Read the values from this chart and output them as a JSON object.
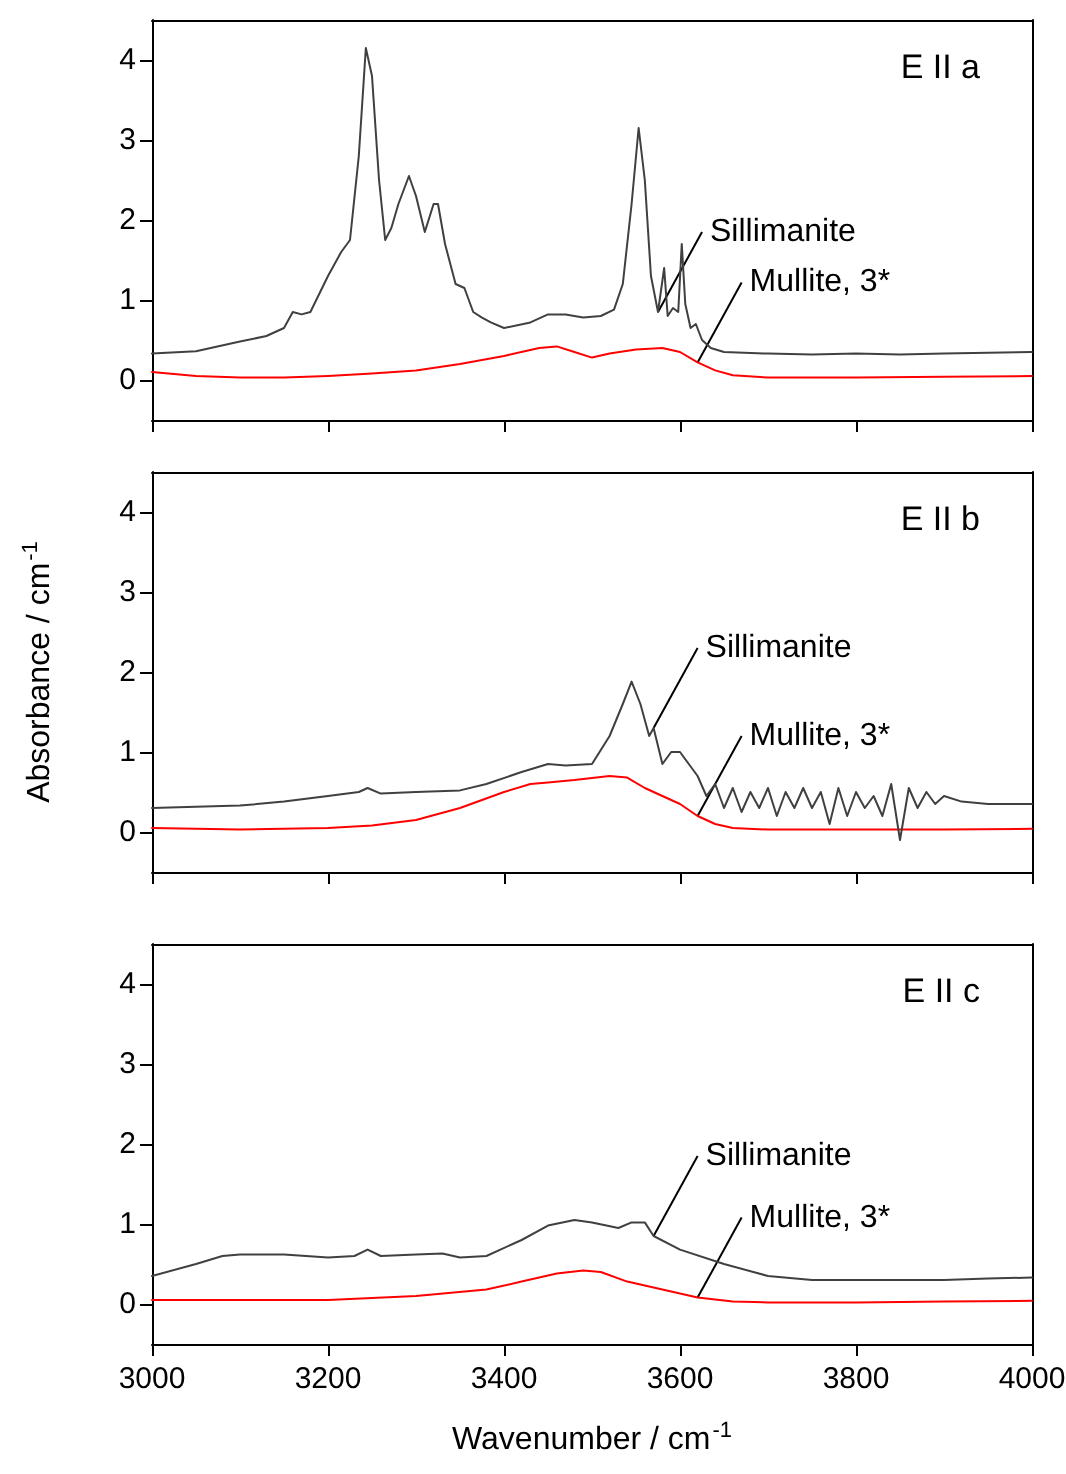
{
  "chart_data": [
    {
      "type": "line",
      "annotations": [
        "E II a"
      ],
      "xlim": [
        3000,
        4000
      ],
      "xticks": [
        3000,
        3200,
        3400,
        3600,
        3800,
        4000
      ],
      "ylim": [
        -0.5,
        4.5
      ],
      "yticks": [
        0,
        1,
        2,
        3,
        4
      ],
      "tick_labels": "y",
      "grid": false,
      "legend": false,
      "marker": "none",
      "line_style": "solid",
      "series": [
        {
          "name": "Sillimanite",
          "color": "#404040",
          "x": [
            3000,
            3050,
            3100,
            3130,
            3150,
            3160,
            3170,
            3180,
            3200,
            3215,
            3225,
            3235,
            3243,
            3250,
            3258,
            3265,
            3272,
            3280,
            3292,
            3300,
            3310,
            3320,
            3325,
            3333,
            3345,
            3355,
            3365,
            3375,
            3385,
            3400,
            3430,
            3450,
            3470,
            3490,
            3510,
            3525,
            3535,
            3545,
            3553,
            3560,
            3567,
            3575,
            3582,
            3586,
            3592,
            3598,
            3602,
            3606,
            3612,
            3618,
            3625,
            3635,
            3650,
            3700,
            3750,
            3800,
            3850,
            3900,
            3950,
            4000
          ],
          "values": [
            0.33,
            0.36,
            0.48,
            0.55,
            0.65,
            0.85,
            0.82,
            0.85,
            1.3,
            1.6,
            1.75,
            2.8,
            4.15,
            3.8,
            2.5,
            1.75,
            1.9,
            2.2,
            2.55,
            2.3,
            1.85,
            2.2,
            2.2,
            1.7,
            1.2,
            1.15,
            0.85,
            0.78,
            0.72,
            0.65,
            0.72,
            0.82,
            0.82,
            0.78,
            0.8,
            0.88,
            1.2,
            2.2,
            3.15,
            2.5,
            1.3,
            0.85,
            1.4,
            0.8,
            0.9,
            0.85,
            1.7,
            0.95,
            0.65,
            0.7,
            0.5,
            0.4,
            0.35,
            0.33,
            0.32,
            0.33,
            0.32,
            0.33,
            0.34,
            0.35
          ]
        },
        {
          "name": "Mullite, 3*",
          "color": "#ff0000",
          "x": [
            3000,
            3050,
            3100,
            3150,
            3200,
            3250,
            3300,
            3350,
            3400,
            3440,
            3460,
            3480,
            3500,
            3520,
            3550,
            3580,
            3600,
            3620,
            3640,
            3660,
            3700,
            3800,
            3900,
            4000
          ],
          "values": [
            0.1,
            0.05,
            0.03,
            0.03,
            0.05,
            0.08,
            0.12,
            0.2,
            0.3,
            0.4,
            0.42,
            0.35,
            0.28,
            0.33,
            0.38,
            0.4,
            0.35,
            0.22,
            0.12,
            0.06,
            0.03,
            0.03,
            0.04,
            0.05
          ]
        }
      ]
    },
    {
      "type": "line",
      "ylabel": "Absorbance / cm$^{-1}$",
      "annotations": [
        "E II b"
      ],
      "xlim": [
        3000,
        4000
      ],
      "xticks": [
        3000,
        3200,
        3400,
        3600,
        3800,
        4000
      ],
      "ylim": [
        -0.5,
        4.5
      ],
      "yticks": [
        0,
        1,
        2,
        3,
        4
      ],
      "tick_labels": "y",
      "grid": false,
      "legend": false,
      "marker": "none",
      "line_style": "solid",
      "series": [
        {
          "name": "Sillimanite",
          "color": "#404040",
          "x": [
            3000,
            3100,
            3150,
            3200,
            3235,
            3245,
            3260,
            3300,
            3350,
            3380,
            3420,
            3450,
            3470,
            3500,
            3520,
            3535,
            3545,
            3555,
            3565,
            3570,
            3580,
            3590,
            3600,
            3610,
            3620,
            3630,
            3640,
            3650,
            3660,
            3670,
            3680,
            3690,
            3700,
            3710,
            3720,
            3730,
            3740,
            3750,
            3760,
            3770,
            3780,
            3790,
            3800,
            3810,
            3820,
            3830,
            3840,
            3850,
            3860,
            3870,
            3880,
            3890,
            3900,
            3920,
            3950,
            4000
          ],
          "values": [
            0.3,
            0.33,
            0.38,
            0.45,
            0.5,
            0.55,
            0.48,
            0.5,
            0.52,
            0.6,
            0.75,
            0.85,
            0.83,
            0.85,
            1.2,
            1.6,
            1.88,
            1.6,
            1.2,
            1.3,
            0.85,
            1.0,
            1.0,
            0.85,
            0.7,
            0.45,
            0.6,
            0.3,
            0.55,
            0.25,
            0.5,
            0.3,
            0.55,
            0.2,
            0.5,
            0.3,
            0.55,
            0.3,
            0.5,
            0.1,
            0.55,
            0.2,
            0.5,
            0.3,
            0.45,
            0.2,
            0.6,
            -0.1,
            0.55,
            0.3,
            0.5,
            0.35,
            0.45,
            0.38,
            0.35,
            0.35
          ]
        },
        {
          "name": "Mullite, 3*",
          "color": "#ff0000",
          "x": [
            3000,
            3100,
            3200,
            3250,
            3300,
            3350,
            3400,
            3430,
            3450,
            3480,
            3520,
            3540,
            3560,
            3580,
            3600,
            3620,
            3640,
            3660,
            3700,
            3800,
            3900,
            4000
          ],
          "values": [
            0.05,
            0.03,
            0.05,
            0.08,
            0.15,
            0.3,
            0.5,
            0.6,
            0.62,
            0.65,
            0.7,
            0.68,
            0.55,
            0.45,
            0.35,
            0.2,
            0.1,
            0.05,
            0.03,
            0.03,
            0.03,
            0.04
          ]
        }
      ]
    },
    {
      "type": "line",
      "xlabel": "Wavenumber / cm$^{-1}$",
      "annotations": [
        "E II c"
      ],
      "xlim": [
        3000,
        4000
      ],
      "xticks": [
        3000,
        3200,
        3400,
        3600,
        3800,
        4000
      ],
      "ylim": [
        -0.5,
        4.5
      ],
      "yticks": [
        0,
        1,
        2,
        3,
        4
      ],
      "grid": false,
      "legend": false,
      "marker": "none",
      "line_style": "solid",
      "series": [
        {
          "name": "Sillimanite",
          "color": "#404040",
          "x": [
            3000,
            3050,
            3080,
            3100,
            3150,
            3200,
            3230,
            3245,
            3260,
            3300,
            3330,
            3350,
            3380,
            3420,
            3450,
            3480,
            3500,
            3530,
            3545,
            3560,
            3570,
            3600,
            3650,
            3700,
            3750,
            3800,
            3850,
            3900,
            3950,
            4000
          ],
          "values": [
            0.35,
            0.5,
            0.6,
            0.62,
            0.62,
            0.58,
            0.6,
            0.68,
            0.6,
            0.62,
            0.63,
            0.58,
            0.6,
            0.8,
            0.98,
            1.05,
            1.02,
            0.95,
            1.02,
            1.02,
            0.85,
            0.68,
            0.5,
            0.35,
            0.3,
            0.3,
            0.3,
            0.3,
            0.32,
            0.33
          ]
        },
        {
          "name": "Mullite, 3*",
          "color": "#ff0000",
          "x": [
            3000,
            3100,
            3200,
            3300,
            3380,
            3420,
            3460,
            3490,
            3510,
            3540,
            3580,
            3620,
            3660,
            3700,
            3800,
            3900,
            4000
          ],
          "values": [
            0.05,
            0.05,
            0.05,
            0.1,
            0.18,
            0.28,
            0.38,
            0.42,
            0.4,
            0.28,
            0.18,
            0.08,
            0.03,
            0.02,
            0.02,
            0.03,
            0.04
          ]
        }
      ]
    }
  ]
}
